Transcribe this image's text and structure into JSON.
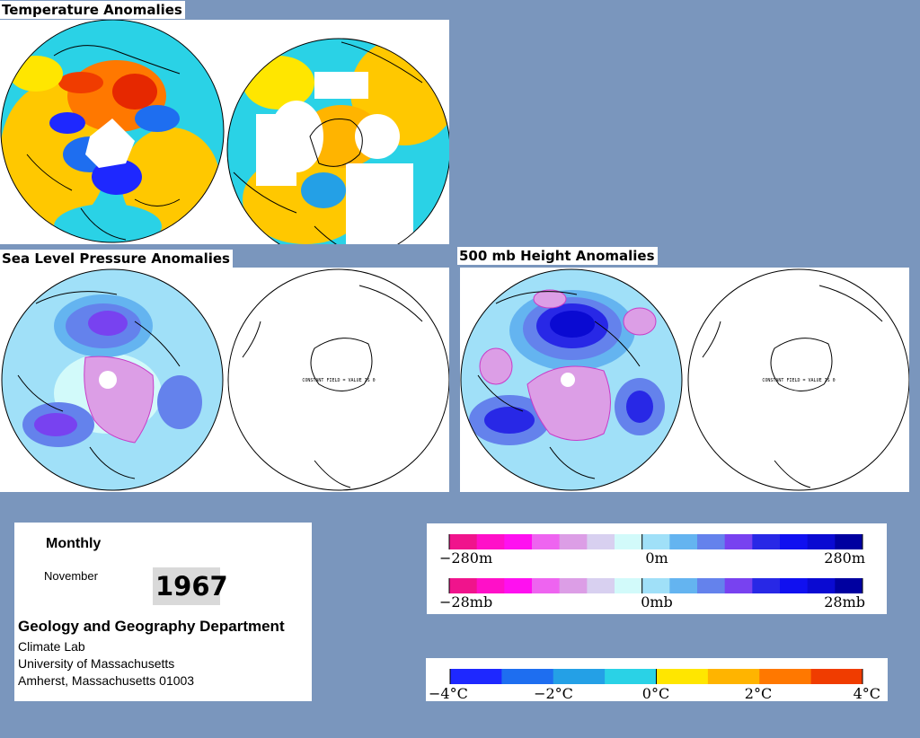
{
  "sections": {
    "temperature_title": "Temperature Anomalies",
    "slp_title": "Sea Level Pressure Anomalies",
    "height_title": "500 mb Height Anomalies"
  },
  "map_text": {
    "slp_south": "CONSTANT FIELD = VALUE IS 0",
    "height_south": "CONSTANT FIELD = VALUE IS 0"
  },
  "info": {
    "period": "Monthly",
    "month": "November",
    "year": "1967",
    "department": "Geology and Geography Department",
    "lab": "Climate Lab",
    "university": "University of Massachusetts",
    "address": "Amherst, Massachusetts 01003"
  },
  "legend_height": {
    "left": "−280m",
    "mid": "0m",
    "right": "280m",
    "colors": [
      "#f0148c",
      "#ff10c8",
      "#ff10f0",
      "#ee64f0",
      "#dc9ee6",
      "#d8d0f0",
      "#d2fafa",
      "#a0e0f8",
      "#64b4f0",
      "#6482ec",
      "#7842f0",
      "#2828e6",
      "#1010f0",
      "#0a0ad2",
      "#0000a0"
    ]
  },
  "legend_pressure": {
    "left": "−28mb",
    "mid": "0mb",
    "right": "28mb",
    "colors": [
      "#f0148c",
      "#ff10c8",
      "#ff10f0",
      "#ee64f0",
      "#dc9ee6",
      "#d8d0f0",
      "#d2fafa",
      "#a0e0f8",
      "#64b4f0",
      "#6482ec",
      "#7842f0",
      "#2828e6",
      "#1010f0",
      "#0a0ad2",
      "#0000a0"
    ]
  },
  "legend_temp": {
    "t1": "−4°C",
    "t2": "−2°C",
    "t3": "0°C",
    "t4": "2°C",
    "t5": "4°C",
    "colors": [
      "#1e28ff",
      "#1e6ef0",
      "#24a0e6",
      "#2ad2e6",
      "#ffe600",
      "#ffb400",
      "#ff7800",
      "#f03c00"
    ]
  }
}
